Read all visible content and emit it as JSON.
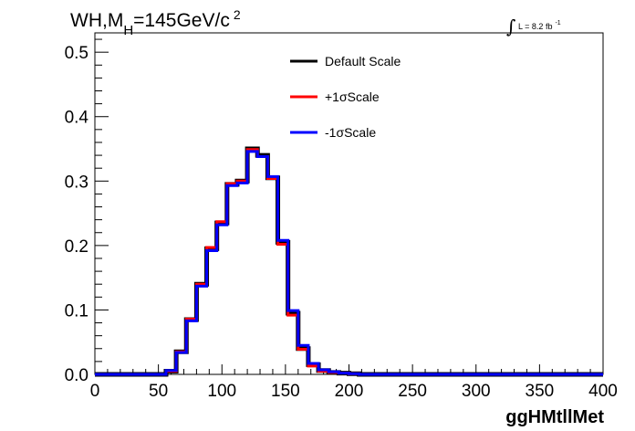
{
  "chart_data": {
    "type": "line",
    "title": {
      "main": "WH,M",
      "subscript": "H",
      "rest": "=145GeV/c",
      "superscript": "2"
    },
    "lumi": {
      "integral_symbol": "∫",
      "text": "L = 8.2 fb",
      "superscript": "-1"
    },
    "xlabel": "ggHMtllMet",
    "ylabel": "",
    "xlim": [
      0,
      400
    ],
    "ylim": [
      0,
      0.53
    ],
    "x_ticks": [
      {
        "value": 0,
        "label": "0"
      },
      {
        "value": 50,
        "label": "50"
      },
      {
        "value": 100,
        "label": "100"
      },
      {
        "value": 150,
        "label": "150"
      },
      {
        "value": 200,
        "label": "200"
      },
      {
        "value": 250,
        "label": "250"
      },
      {
        "value": 300,
        "label": "300"
      },
      {
        "value": 350,
        "label": "350"
      },
      {
        "value": 400,
        "label": "400"
      }
    ],
    "y_ticks": [
      {
        "value": 0,
        "label": "0.0"
      },
      {
        "value": 0.1,
        "label": "0.1"
      },
      {
        "value": 0.2,
        "label": "0.2"
      },
      {
        "value": 0.3,
        "label": "0.3"
      },
      {
        "value": 0.4,
        "label": "0.4"
      },
      {
        "value": 0.5,
        "label": "0.5"
      }
    ],
    "grid": false,
    "legend_position": "top-center",
    "bin_width": 8,
    "bin_edges_start": 0,
    "series": [
      {
        "name": "Default Scale",
        "color": "#000000",
        "values": [
          0,
          0,
          0,
          0,
          0,
          0,
          0,
          0.005,
          0.035,
          0.085,
          0.14,
          0.195,
          0.235,
          0.295,
          0.3,
          0.35,
          0.34,
          0.305,
          0.205,
          0.095,
          0.04,
          0.015,
          0.006,
          0.003,
          0.002,
          0.001,
          0,
          0,
          0,
          0,
          0,
          0,
          0,
          0,
          0,
          0,
          0,
          0,
          0,
          0,
          0,
          0,
          0,
          0,
          0,
          0,
          0,
          0,
          0,
          0
        ]
      },
      {
        "name": "+1σScale",
        "color": "#ff0000",
        "values": [
          0,
          0,
          0,
          0,
          0,
          0,
          0,
          0.005,
          0.035,
          0.086,
          0.14,
          0.197,
          0.237,
          0.296,
          0.3,
          0.349,
          0.338,
          0.304,
          0.202,
          0.092,
          0.039,
          0.013,
          0.005,
          0.003,
          0.002,
          0.001,
          0,
          0,
          0,
          0,
          0,
          0,
          0,
          0,
          0,
          0,
          0,
          0,
          0,
          0,
          0,
          0,
          0,
          0,
          0,
          0,
          0,
          0,
          0,
          0
        ]
      },
      {
        "name": "-1σScale",
        "color": "#0000ff",
        "values": [
          0,
          0,
          0,
          0,
          0,
          0,
          0,
          0.006,
          0.034,
          0.083,
          0.137,
          0.192,
          0.232,
          0.293,
          0.297,
          0.346,
          0.338,
          0.307,
          0.208,
          0.099,
          0.045,
          0.017,
          0.007,
          0.004,
          0.002,
          0.001,
          0,
          0,
          0,
          0,
          0,
          0,
          0,
          0,
          0,
          0,
          0,
          0,
          0,
          0,
          0,
          0,
          0,
          0,
          0,
          0,
          0,
          0,
          0,
          0
        ]
      }
    ]
  }
}
